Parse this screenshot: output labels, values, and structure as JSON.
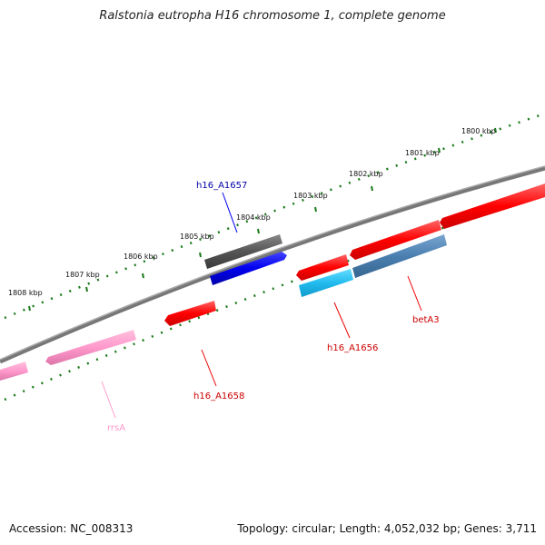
{
  "title": "Ralstonia eutropha H16 chromosome 1, complete genome",
  "footer": {
    "accession": "Accession: NC_008313",
    "topology": "Topology: circular; Length: 4,052,032 bp; Genes: 3,711"
  },
  "scale_labels": [
    "1800 kbp",
    "1801 kbp",
    "1802 kbp",
    "1803 kbp",
    "1804 kbp",
    "1805 kbp",
    "1806 kbp",
    "1807 kbp",
    "1808 kbp"
  ],
  "genes": [
    {
      "name": "h16_A1657",
      "strand": "forward",
      "color": "#0000ee",
      "label_color": "#0000aa"
    },
    {
      "name": "h16_A1656",
      "strand": "reverse",
      "color": "#ff0000",
      "label_color": "#cc0000"
    },
    {
      "name": "betA3",
      "strand": "reverse",
      "color": "#ff0000",
      "label_color": "#cc0000"
    },
    {
      "name": "h16_A1658",
      "strand": "reverse",
      "color": "#ff0000",
      "label_color": "#cc0000"
    },
    {
      "name": "rrsA",
      "strand": "reverse",
      "color": "#ff99cc",
      "label_color": "#ff99cc"
    }
  ],
  "colors": {
    "backbone": "#777777",
    "scale": "#1a7a1a",
    "gene_red": "#ff0000",
    "gene_blue": "#0000ee",
    "gene_cyan": "#22bbee",
    "gene_steel": "#4a7fb0",
    "gene_gray": "#555555",
    "gene_pink": "#ff99cc"
  }
}
